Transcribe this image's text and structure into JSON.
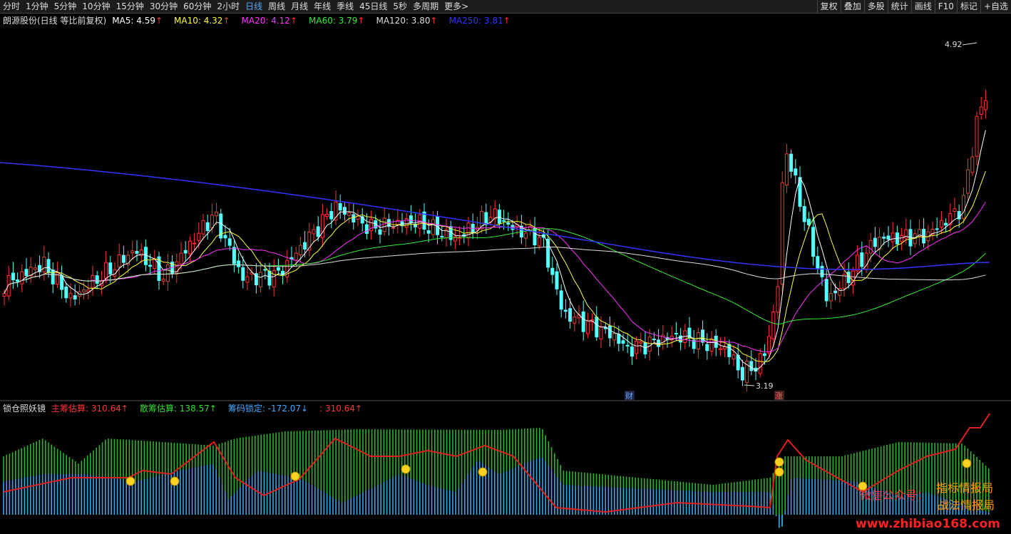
{
  "toolbar": {
    "left": [
      "分时",
      "1分钟",
      "5分钟",
      "10分钟",
      "15分钟",
      "30分钟",
      "60分钟",
      "2小时",
      "日线",
      "周线",
      "月线",
      "年线",
      "季线",
      "45日线",
      "5秒",
      "多周期",
      "更多>"
    ],
    "right": [
      "复权",
      "叠加",
      "多股",
      "统计",
      "画线",
      "F10",
      "标记",
      "+自选"
    ]
  },
  "main": {
    "title": "朗源股份(日线 等比前复权)",
    "ma": [
      {
        "label": "MA5: 4.59",
        "color": "#ffffff"
      },
      {
        "label": "MA10: 4.32",
        "color": "#ffff33"
      },
      {
        "label": "MA20: 4.12",
        "color": "#ff33ff"
      },
      {
        "label": "MA60: 3.79",
        "color": "#33ee33"
      },
      {
        "label": "MA120: 3.80",
        "color": "#dddddd"
      },
      {
        "label": "MA250: 3.81",
        "color": "#3333ff"
      }
    ],
    "up_arrow": "↑",
    "high_label": "4.92",
    "low_label": "3.19",
    "marker_cai": "财",
    "marker_zhang": "涨"
  },
  "indicator": {
    "name": "锁仓照妖镜",
    "items": [
      {
        "label": "主筹估算: 310.64",
        "arrow": "↑",
        "color": "#ff3333"
      },
      {
        "label": "散筹估算: 138.57",
        "arrow": "↑",
        "color": "#33dd33"
      },
      {
        "label": "筹码锁定: -172.07",
        "arrow": "↓",
        "color": "#44aaff"
      },
      {
        "label": ": 310.64",
        "arrow": "↑",
        "color": "#ff3333"
      }
    ]
  },
  "watermark": {
    "wechat": "微信公众号：",
    "name1": "指标情报局",
    "name2": "战法情报局",
    "url": "www.zhibiao168.com"
  }
}
